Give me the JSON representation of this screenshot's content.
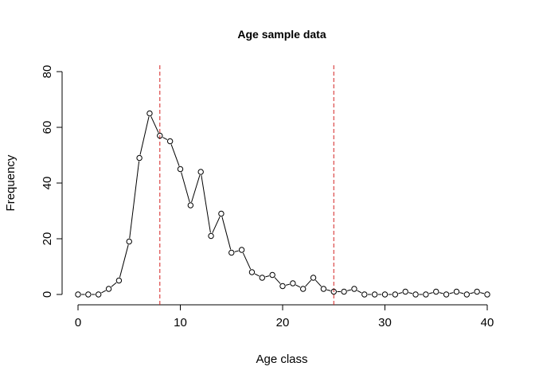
{
  "chart_data": {
    "type": "line",
    "title": "Age sample data",
    "xlabel": "Age class",
    "ylabel": "Frequency",
    "xlim": [
      0,
      40
    ],
    "ylim": [
      0,
      80
    ],
    "xticks": [
      0,
      10,
      20,
      30,
      40
    ],
    "yticks": [
      0,
      20,
      40,
      60,
      80
    ],
    "x": [
      0,
      1,
      2,
      3,
      4,
      5,
      6,
      7,
      8,
      9,
      10,
      11,
      12,
      13,
      14,
      15,
      16,
      17,
      18,
      19,
      20,
      21,
      22,
      23,
      24,
      25,
      26,
      27,
      28,
      29,
      30,
      31,
      32,
      33,
      34,
      35,
      36,
      37,
      38,
      39,
      40
    ],
    "series": [
      {
        "values": [
          0,
          0,
          0,
          2,
          5,
          19,
          49,
          65,
          57,
          55,
          45,
          32,
          44,
          21,
          29,
          15,
          16,
          8,
          6,
          7,
          3,
          4,
          2,
          6,
          2,
          1,
          1,
          2,
          0,
          0,
          0,
          0,
          1,
          0,
          0,
          1,
          0,
          1,
          0,
          1,
          0
        ]
      }
    ],
    "reference_lines": [
      {
        "x": 8,
        "color": "#d42020",
        "style": "dashed"
      },
      {
        "x": 25,
        "color": "#d42020",
        "style": "dashed"
      }
    ],
    "grid": false,
    "legend": "none"
  }
}
